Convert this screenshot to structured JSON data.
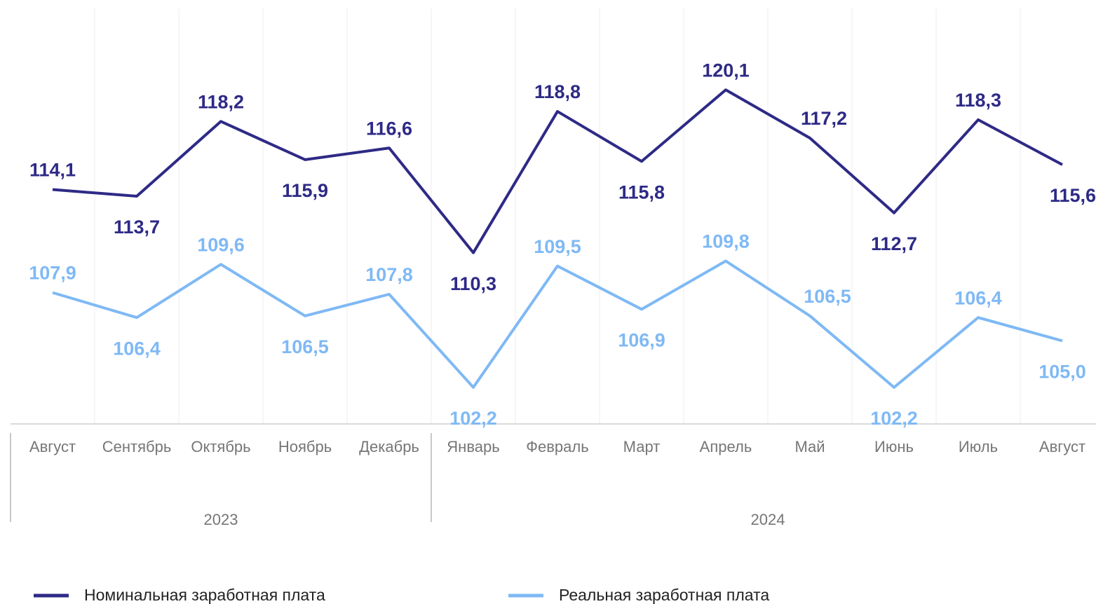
{
  "chart_data": {
    "type": "line",
    "categories": [
      "Август",
      "Сентябрь",
      "Октябрь",
      "Ноябрь",
      "Декабрь",
      "Январь",
      "Февраль",
      "Март",
      "Апрель",
      "Май",
      "Июнь",
      "Июль",
      "Август"
    ],
    "year_groups": [
      "2023",
      "2024"
    ],
    "ylim": [
      100,
      125
    ],
    "grid": true,
    "series": [
      {
        "name": "Номинальная заработная плата",
        "color": "#2e2a86",
        "values": [
          114.1,
          113.7,
          118.2,
          115.9,
          116.6,
          110.3,
          118.8,
          115.8,
          120.1,
          117.2,
          112.7,
          118.3,
          115.6
        ],
        "value_labels": [
          "114,1",
          "113,7",
          "118,2",
          "115,9",
          "116,6",
          "110,3",
          "118,8",
          "115,8",
          "120,1",
          "117,2",
          "112,7",
          "118,3",
          "115,6"
        ]
      },
      {
        "name": "Реальная заработная плата",
        "color": "#7fb9f5",
        "values": [
          107.9,
          106.4,
          109.6,
          106.5,
          107.8,
          102.2,
          109.5,
          106.9,
          109.8,
          106.5,
          102.2,
          106.4,
          105.0
        ],
        "value_labels": [
          "107,9",
          "106,4",
          "109,6",
          "106,5",
          "107,8",
          "102,2",
          "109,5",
          "106,9",
          "109,8",
          "106,5",
          "102,2",
          "106,4",
          "105,0"
        ]
      }
    ]
  }
}
